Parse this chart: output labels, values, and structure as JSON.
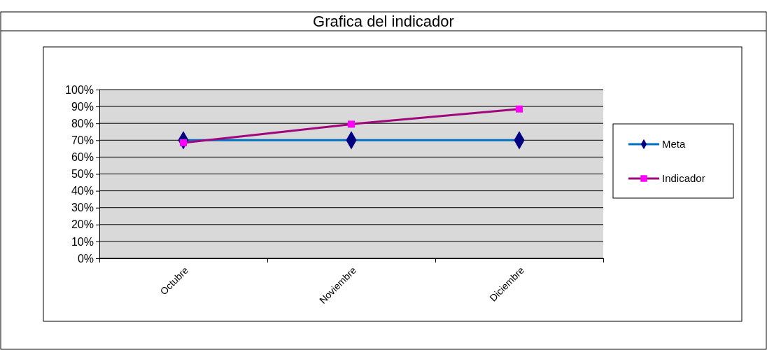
{
  "chart_data": {
    "type": "line",
    "title": "Grafica del indicador",
    "categories": [
      "Octubre",
      "Noviembre",
      "Diciembre"
    ],
    "series": [
      {
        "name": "Meta",
        "color": "#0070c0",
        "values": [
          70,
          70,
          70
        ],
        "marker": "diamond"
      },
      {
        "name": "Indicador",
        "color": "#a0077d",
        "values": [
          68.5,
          79.5,
          88.5
        ],
        "marker": "square"
      }
    ],
    "ylim": [
      0,
      100
    ],
    "yticks": [
      {
        "value": 0,
        "label": "0%"
      },
      {
        "value": 10,
        "label": "10%"
      },
      {
        "value": 20,
        "label": "20%"
      },
      {
        "value": 30,
        "label": "30%"
      },
      {
        "value": 40,
        "label": "40%"
      },
      {
        "value": 50,
        "label": "50%"
      },
      {
        "value": 60,
        "label": "60%"
      },
      {
        "value": 70,
        "label": "70%"
      },
      {
        "value": 80,
        "label": "80%"
      },
      {
        "value": 90,
        "label": "90%"
      },
      {
        "value": 100,
        "label": "100%"
      }
    ],
    "grid": "y",
    "legend": "right"
  }
}
